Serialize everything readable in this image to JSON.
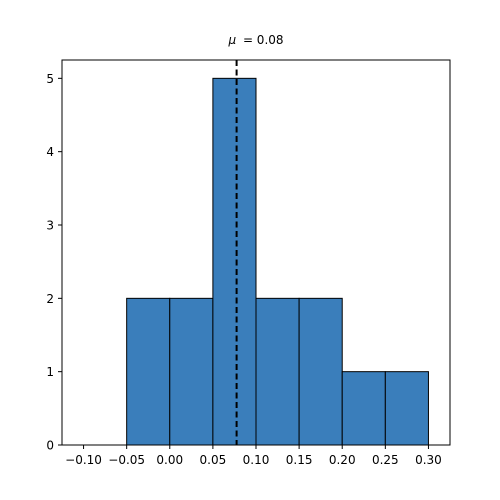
{
  "chart_data": {
    "type": "bar",
    "subtype": "histogram",
    "title_symbol": "μ",
    "title_value": "= 0.08",
    "xlabel": "",
    "ylabel": "",
    "xlim": [
      -0.125,
      0.325
    ],
    "ylim": [
      0,
      5.25
    ],
    "x_ticks": [
      -0.1,
      -0.05,
      0.0,
      0.05,
      0.1,
      0.15,
      0.2,
      0.25,
      0.3
    ],
    "x_tick_labels": [
      "−0.10",
      "−0.05",
      "0.00",
      "0.05",
      "0.10",
      "0.15",
      "0.20",
      "0.25",
      "0.30"
    ],
    "y_ticks": [
      0,
      1,
      2,
      3,
      4,
      5
    ],
    "y_tick_labels": [
      "0",
      "1",
      "2",
      "3",
      "4",
      "5"
    ],
    "bins": [
      {
        "start": -0.1,
        "end": -0.05,
        "count": 0
      },
      {
        "start": -0.05,
        "end": 0.0,
        "count": 2
      },
      {
        "start": 0.0,
        "end": 0.05,
        "count": 2
      },
      {
        "start": 0.05,
        "end": 0.1,
        "count": 5
      },
      {
        "start": 0.1,
        "end": 0.15,
        "count": 2
      },
      {
        "start": 0.15,
        "end": 0.2,
        "count": 2
      },
      {
        "start": 0.2,
        "end": 0.25,
        "count": 1
      },
      {
        "start": 0.25,
        "end": 0.3,
        "count": 1
      }
    ],
    "mean_line": {
      "x": 0.0775,
      "style": "dashed"
    },
    "grid": false,
    "bar_color": "#3a7ebb",
    "edge_color": "#000000",
    "mean_line_color": "#000000"
  }
}
